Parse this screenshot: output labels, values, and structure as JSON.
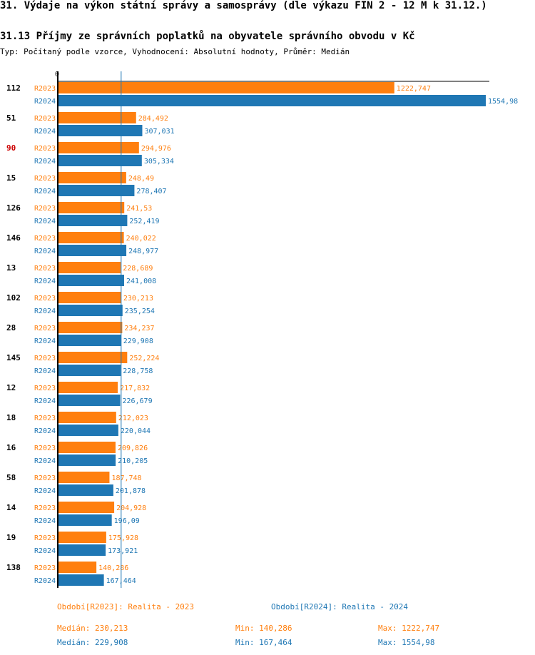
{
  "header": {
    "title": "31. Výdaje na výkon státní správy a samosprávy (dle výkazu FIN 2 - 12 M k 31.12.)",
    "subtitle": "31.13 Příjmy ze správních poplatků na obyvatele správního obvodu v Kč",
    "meta": "Typ: Počítaný podle vzorce, Vyhodnocení: Absolutní hodnoty, Průměr: Medián"
  },
  "colors": {
    "r2023": "#ff7f0e",
    "r2024": "#1f77b4",
    "highlight": "#cc0000"
  },
  "chart_data": {
    "type": "bar",
    "orientation": "horizontal",
    "axis_zero_label": "0",
    "xlim": [
      0,
      1554.98
    ],
    "highlight_category": "90",
    "median_line_value": 230.213,
    "categories": [
      "112",
      "51",
      "90",
      "15",
      "126",
      "146",
      "13",
      "102",
      "28",
      "145",
      "12",
      "18",
      "16",
      "58",
      "14",
      "19",
      "138"
    ],
    "series": [
      {
        "name": "R2023",
        "labels": [
          "1222,747",
          "284,492",
          "294,976",
          "248,49",
          "241,53",
          "240,022",
          "228,689",
          "230,213",
          "234,237",
          "252,224",
          "217,832",
          "212,023",
          "209,826",
          "187,748",
          "204,928",
          "175,928",
          "140,286"
        ],
        "values": [
          1222.747,
          284.492,
          294.976,
          248.49,
          241.53,
          240.022,
          228.689,
          230.213,
          234.237,
          252.224,
          217.832,
          212.023,
          209.826,
          187.748,
          204.928,
          175.928,
          140.286
        ]
      },
      {
        "name": "R2024",
        "labels": [
          "1554,98",
          "307,031",
          "305,334",
          "278,407",
          "252,419",
          "248,977",
          "241,008",
          "235,254",
          "229,908",
          "228,758",
          "226,679",
          "220,044",
          "210,205",
          "201,878",
          "196,09",
          "173,921",
          "167,464"
        ],
        "values": [
          1554.98,
          307.031,
          305.334,
          278.407,
          252.419,
          248.977,
          241.008,
          235.254,
          229.908,
          228.758,
          226.679,
          220.044,
          210.205,
          201.878,
          196.09,
          173.921,
          167.464
        ]
      }
    ]
  },
  "legend": {
    "r2023": "Období[R2023]: Realita - 2023",
    "r2024": "Období[R2024]: Realita - 2024"
  },
  "stats": {
    "r2023": {
      "median": "Medián: 230,213",
      "min": "Min: 140,286",
      "max": "Max: 1222,747"
    },
    "r2024": {
      "median": "Medián: 229,908",
      "min": "Min: 167,464",
      "max": "Max: 1554,98"
    }
  }
}
